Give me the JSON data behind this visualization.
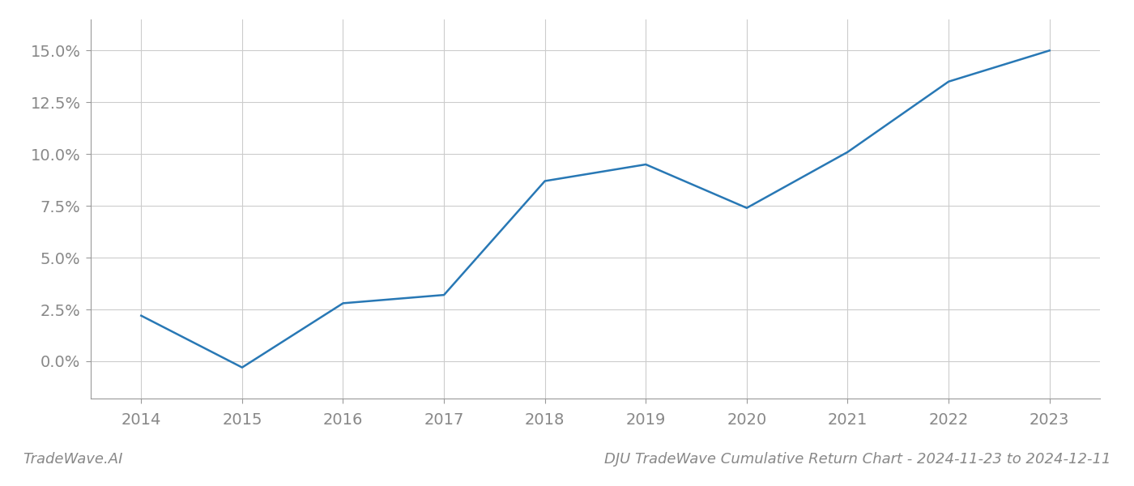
{
  "x_values": [
    2014,
    2015,
    2016,
    2017,
    2018,
    2019,
    2020,
    2021,
    2022,
    2023
  ],
  "y_values": [
    0.022,
    -0.003,
    0.028,
    0.032,
    0.087,
    0.095,
    0.074,
    0.101,
    0.135,
    0.15
  ],
  "line_color": "#2878b5",
  "line_width": 1.8,
  "background_color": "#ffffff",
  "grid_color": "#cccccc",
  "title": "DJU TradeWave Cumulative Return Chart - 2024-11-23 to 2024-12-11",
  "footer_left": "TradeWave.AI",
  "xlim": [
    2013.5,
    2023.5
  ],
  "ylim": [
    -0.018,
    0.165
  ],
  "yticks": [
    0.0,
    0.025,
    0.05,
    0.075,
    0.1,
    0.125,
    0.15
  ],
  "ytick_labels": [
    "0.0%",
    "2.5%",
    "5.0%",
    "7.5%",
    "10.0%",
    "12.5%",
    "15.0%"
  ],
  "xticks": [
    2014,
    2015,
    2016,
    2017,
    2018,
    2019,
    2020,
    2021,
    2022,
    2023
  ],
  "tick_color": "#888888",
  "tick_fontsize": 14,
  "footer_fontsize": 13,
  "title_fontsize": 13
}
